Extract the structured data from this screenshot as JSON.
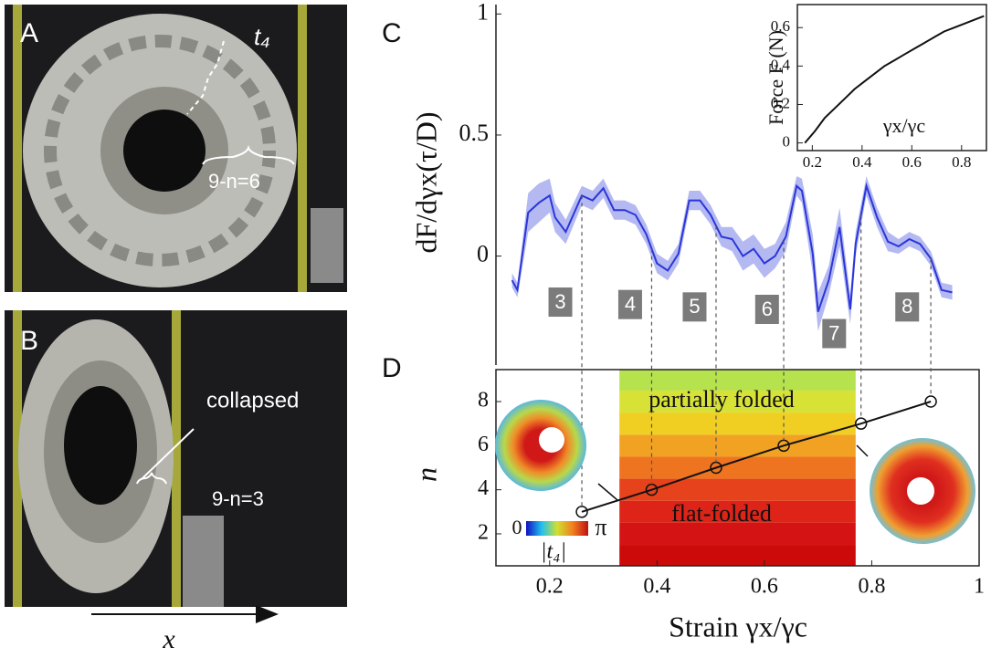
{
  "panels": {
    "a": "A",
    "b": "B",
    "c": "C",
    "d": "D"
  },
  "photos": {
    "t4": "t₄",
    "count_a": "9-n=6",
    "collapsed": "collapsed",
    "count_b": "9-n=3",
    "arrow_label": "x"
  },
  "chart_data": [
    {
      "type": "line",
      "ylabel": "dF/dγx(τ/D)",
      "xlim": [
        0.1,
        1
      ],
      "ylim": [
        -0.45,
        1.02
      ],
      "yticks": [
        0,
        0.5,
        1
      ],
      "x": [
        0.13,
        0.14,
        0.16,
        0.18,
        0.2,
        0.21,
        0.23,
        0.26,
        0.28,
        0.3,
        0.32,
        0.34,
        0.36,
        0.38,
        0.4,
        0.42,
        0.44,
        0.46,
        0.48,
        0.5,
        0.52,
        0.54,
        0.56,
        0.58,
        0.6,
        0.62,
        0.64,
        0.66,
        0.67,
        0.69,
        0.7,
        0.72,
        0.74,
        0.76,
        0.77,
        0.79,
        0.81,
        0.83,
        0.85,
        0.87,
        0.89,
        0.91,
        0.93,
        0.95
      ],
      "series": [
        {
          "color": "#2b36d9",
          "band_color": "#b4b9f2",
          "values": [
            -0.1,
            -0.14,
            0.18,
            0.22,
            0.25,
            0.16,
            0.1,
            0.25,
            0.23,
            0.28,
            0.19,
            0.19,
            0.17,
            0.09,
            -0.03,
            -0.06,
            0.01,
            0.23,
            0.23,
            0.17,
            0.08,
            0.07,
            0,
            0.03,
            -0.03,
            0,
            0.08,
            0.29,
            0.27,
            0.01,
            -0.23,
            -0.1,
            0.12,
            -0.22,
            0.05,
            0.29,
            0.16,
            0.06,
            0.04,
            0.07,
            0.05,
            -0.01,
            -0.14,
            -0.15
          ],
          "errors": [
            0.03,
            0.03,
            0.08,
            0.08,
            0.07,
            0.06,
            0.05,
            0.04,
            0.04,
            0.04,
            0.04,
            0.04,
            0.04,
            0.04,
            0.04,
            0.04,
            0.04,
            0.04,
            0.04,
            0.04,
            0.04,
            0.05,
            0.06,
            0.06,
            0.06,
            0.05,
            0.06,
            0.04,
            0.05,
            0.08,
            0.08,
            0.06,
            0.08,
            0.06,
            0.05,
            0.04,
            0.04,
            0.04,
            0.03,
            0.03,
            0.03,
            0.03,
            0.03,
            0.03
          ]
        }
      ],
      "annotations": [
        {
          "text": "3",
          "x": 0.22,
          "y": -0.19
        },
        {
          "text": "4",
          "x": 0.35,
          "y": -0.2
        },
        {
          "text": "5",
          "x": 0.47,
          "y": -0.21
        },
        {
          "text": "6",
          "x": 0.605,
          "y": -0.22
        },
        {
          "text": "7",
          "x": 0.73,
          "y": -0.32
        },
        {
          "text": "8",
          "x": 0.866,
          "y": -0.21
        }
      ]
    },
    {
      "type": "line",
      "ylabel": "Force F (N)",
      "xlabel": "γx/γc",
      "xlim": [
        0.14,
        0.9
      ],
      "ylim": [
        -0.04,
        0.72
      ],
      "xticks": [
        0.2,
        0.4,
        0.6,
        0.8
      ],
      "yticks": [
        0,
        0.2,
        0.4,
        0.6
      ],
      "x": [
        0.17,
        0.21,
        0.25,
        0.29,
        0.33,
        0.37,
        0.41,
        0.45,
        0.49,
        0.53,
        0.57,
        0.61,
        0.65,
        0.69,
        0.73,
        0.77,
        0.81,
        0.85,
        0.89
      ],
      "series": [
        {
          "color": "#111111",
          "values": [
            0,
            0.06,
            0.13,
            0.18,
            0.23,
            0.28,
            0.32,
            0.36,
            0.4,
            0.43,
            0.46,
            0.49,
            0.52,
            0.55,
            0.58,
            0.6,
            0.62,
            0.64,
            0.66
          ]
        }
      ]
    },
    {
      "type": "line",
      "ylabel": "n",
      "xlabel": "Strain γx/γc",
      "xlim": [
        0.1,
        1
      ],
      "ylim": [
        0.55,
        9.45
      ],
      "xticks": [
        0.2,
        0.4,
        0.6,
        0.8,
        1
      ],
      "yticks": [
        2,
        4,
        6,
        8
      ],
      "x": [
        0.26,
        0.39,
        0.51,
        0.636,
        0.78,
        0.91
      ],
      "series": [
        {
          "color": "#111111",
          "values": [
            3,
            4,
            5,
            6,
            7,
            8
          ]
        }
      ],
      "heatmap": {
        "x": [
          0.33,
          0.77
        ],
        "colors": [
          "#cc0a0a",
          "#d41414",
          "#de2418",
          "#e6421c",
          "#ee7420",
          "#f2a222",
          "#f0cf22",
          "#d8e236",
          "#b6e24e"
        ]
      },
      "labels": {
        "upper": "partially folded",
        "lower": "flat-folded",
        "colorbar_min": "0",
        "colorbar_max": "π",
        "colorbar_label": "|t₄|"
      }
    }
  ]
}
